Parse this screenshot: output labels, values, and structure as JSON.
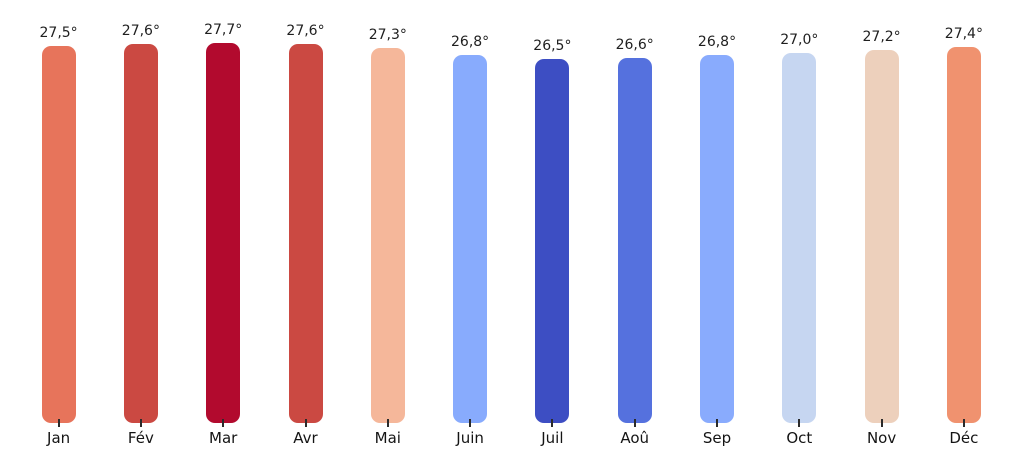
{
  "chart_data": {
    "type": "bar",
    "title": "",
    "xlabel": "",
    "ylabel": "",
    "grid": false,
    "legend": false,
    "ylim": [
      0,
      28.4
    ],
    "categories": [
      "Jan",
      "Fév",
      "Mar",
      "Avr",
      "Mai",
      "Juin",
      "Juil",
      "Aoû",
      "Sep",
      "Oct",
      "Nov",
      "Déc"
    ],
    "values": [
      27.5,
      27.6,
      27.7,
      27.6,
      27.3,
      26.8,
      26.5,
      26.6,
      26.8,
      27.0,
      27.2,
      27.4
    ],
    "value_labels": [
      "27,5°",
      "27,6°",
      "27,7°",
      "27,6°",
      "27,3°",
      "26,8°",
      "26,5°",
      "26,6°",
      "26,8°",
      "27,0°",
      "27,2°",
      "27,4°"
    ],
    "bar_colors": [
      "#e7745b",
      "#cb4942",
      "#b20a2e",
      "#cb4942",
      "#f5b79a",
      "#88abfd",
      "#3d4ec3",
      "#5571de",
      "#89abfd",
      "#c6d6f1",
      "#edd0bc",
      "#f0926f"
    ]
  },
  "colors": {
    "background": "#ffffff",
    "value_label_text": "#1f1f1f",
    "month_label_text": "#141414",
    "tick": "#2b2b2b"
  }
}
